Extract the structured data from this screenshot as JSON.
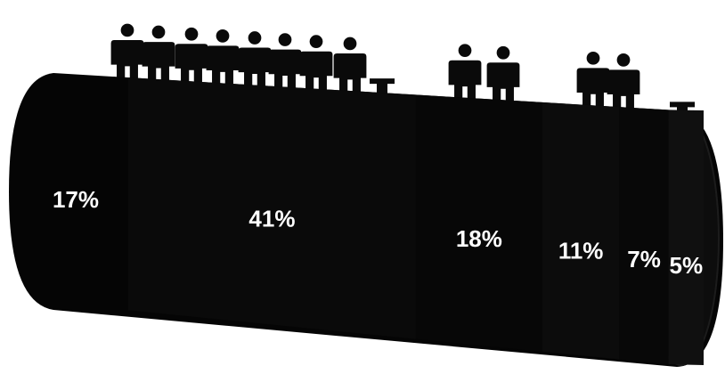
{
  "chart_data": {
    "type": "bar",
    "style": "stacked-cylinder-with-people-icons",
    "values": [
      17,
      41,
      18,
      11,
      7,
      5
    ],
    "labels": [
      "17%",
      "41%",
      "18%",
      "11%",
      "7%",
      "5%"
    ],
    "icon": "person-icon",
    "icon_counts": [
      2,
      6,
      2,
      2,
      1,
      1
    ],
    "colors": {
      "cylinder": "#050505",
      "label": "#ffffff",
      "figure": "#0a0a0a"
    }
  }
}
